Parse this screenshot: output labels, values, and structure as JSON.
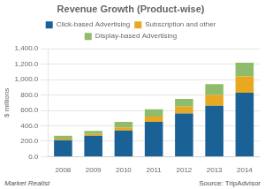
{
  "chart_data": {
    "type": "bar",
    "stacked": true,
    "title": "Revenue Growth (Product-wise)",
    "ylabel": "$ millions",
    "categories": [
      "2008",
      "2009",
      "2010",
      "2011",
      "2012",
      "2013",
      "2014"
    ],
    "series": [
      {
        "name": "Click-based Advertising",
        "color": "#1a6196",
        "values": [
          215,
          270,
          340,
          450,
          560,
          660,
          830
        ]
      },
      {
        "name": "Subscription and other",
        "color": "#e8a820",
        "values": [
          20,
          25,
          40,
          70,
          90,
          140,
          210
        ]
      },
      {
        "name": "Display-based Advertising",
        "color": "#8fbc6a",
        "values": [
          35,
          40,
          70,
          95,
          100,
          140,
          180
        ]
      }
    ],
    "ylim": [
      0,
      1400
    ],
    "yticks": [
      {
        "value": 0,
        "label": "0.0"
      },
      {
        "value": 200,
        "label": "200.0"
      },
      {
        "value": 400,
        "label": "400.0"
      },
      {
        "value": 600,
        "label": "600.0"
      },
      {
        "value": 800,
        "label": "800.0"
      },
      {
        "value": 1000,
        "label": "1,000.0"
      },
      {
        "value": 1200,
        "label": "1,200.0"
      },
      {
        "value": 1400,
        "label": "1,400.0"
      }
    ],
    "grid": true,
    "legend": "top",
    "annotations": [
      "Market Realist",
      "Source: TripAdvisor"
    ]
  }
}
